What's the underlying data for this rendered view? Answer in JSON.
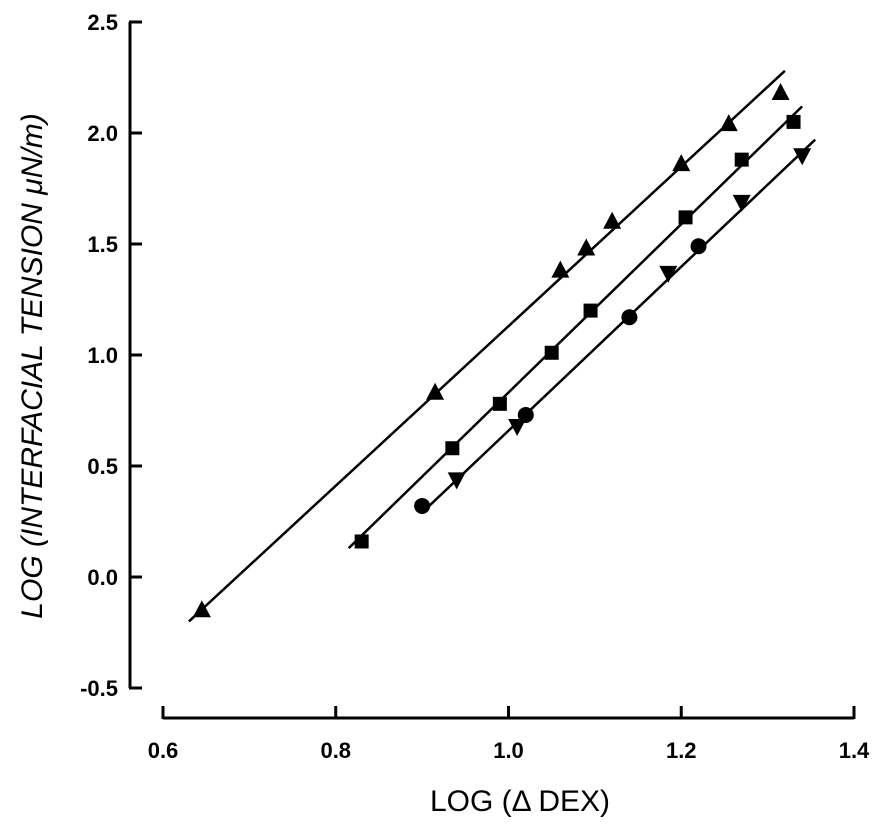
{
  "chart_data": {
    "type": "scatter",
    "title": "",
    "xlabel": "LOG (Δ DEX)",
    "ylabel": "LOG (INTERFACIAL TENSION μN/m)",
    "xlim": [
      0.6,
      1.4
    ],
    "ylim": [
      -0.5,
      2.5
    ],
    "x_ticks": [
      0.6,
      0.8,
      1.0,
      1.2,
      1.4
    ],
    "x_tick_labels": [
      "0.6",
      "0.8",
      "1.0",
      "1.2",
      "1.4"
    ],
    "y_ticks": [
      -0.5,
      0.0,
      0.5,
      1.0,
      1.5,
      2.0,
      2.5
    ],
    "y_tick_labels": [
      "-0.5",
      "0.0",
      "0.5",
      "1.0",
      "1.5",
      "2.0",
      "2.5"
    ],
    "grid": false,
    "legend": "none",
    "series": [
      {
        "marker": "triangle-up",
        "color": "#000000",
        "points": [
          [
            0.645,
            -0.15
          ],
          [
            0.915,
            0.83
          ],
          [
            1.06,
            1.38
          ],
          [
            1.09,
            1.48
          ],
          [
            1.12,
            1.6
          ],
          [
            1.2,
            1.86
          ],
          [
            1.255,
            2.04
          ],
          [
            1.315,
            2.18
          ]
        ],
        "fit_line": [
          [
            0.63,
            -0.2
          ],
          [
            1.32,
            2.28
          ]
        ]
      },
      {
        "marker": "square",
        "color": "#000000",
        "points": [
          [
            0.83,
            0.16
          ],
          [
            0.935,
            0.58
          ],
          [
            0.99,
            0.78
          ],
          [
            1.05,
            1.01
          ],
          [
            1.095,
            1.2
          ],
          [
            1.205,
            1.62
          ],
          [
            1.27,
            1.88
          ],
          [
            1.33,
            2.05
          ]
        ],
        "fit_line": [
          [
            0.815,
            0.13
          ],
          [
            1.34,
            2.12
          ]
        ]
      },
      {
        "marker": "circle",
        "color": "#000000",
        "points": [
          [
            0.9,
            0.32
          ],
          [
            1.02,
            0.73
          ],
          [
            1.14,
            1.17
          ],
          [
            1.22,
            1.49
          ]
        ],
        "fit_line": [
          [
            0.9,
            0.29
          ],
          [
            1.355,
            1.97
          ]
        ]
      },
      {
        "marker": "triangle-down",
        "color": "#000000",
        "points": [
          [
            0.94,
            0.44
          ],
          [
            1.01,
            0.68
          ],
          [
            1.185,
            1.37
          ],
          [
            1.27,
            1.69
          ],
          [
            1.34,
            1.9
          ]
        ],
        "fit_line": null
      }
    ]
  }
}
